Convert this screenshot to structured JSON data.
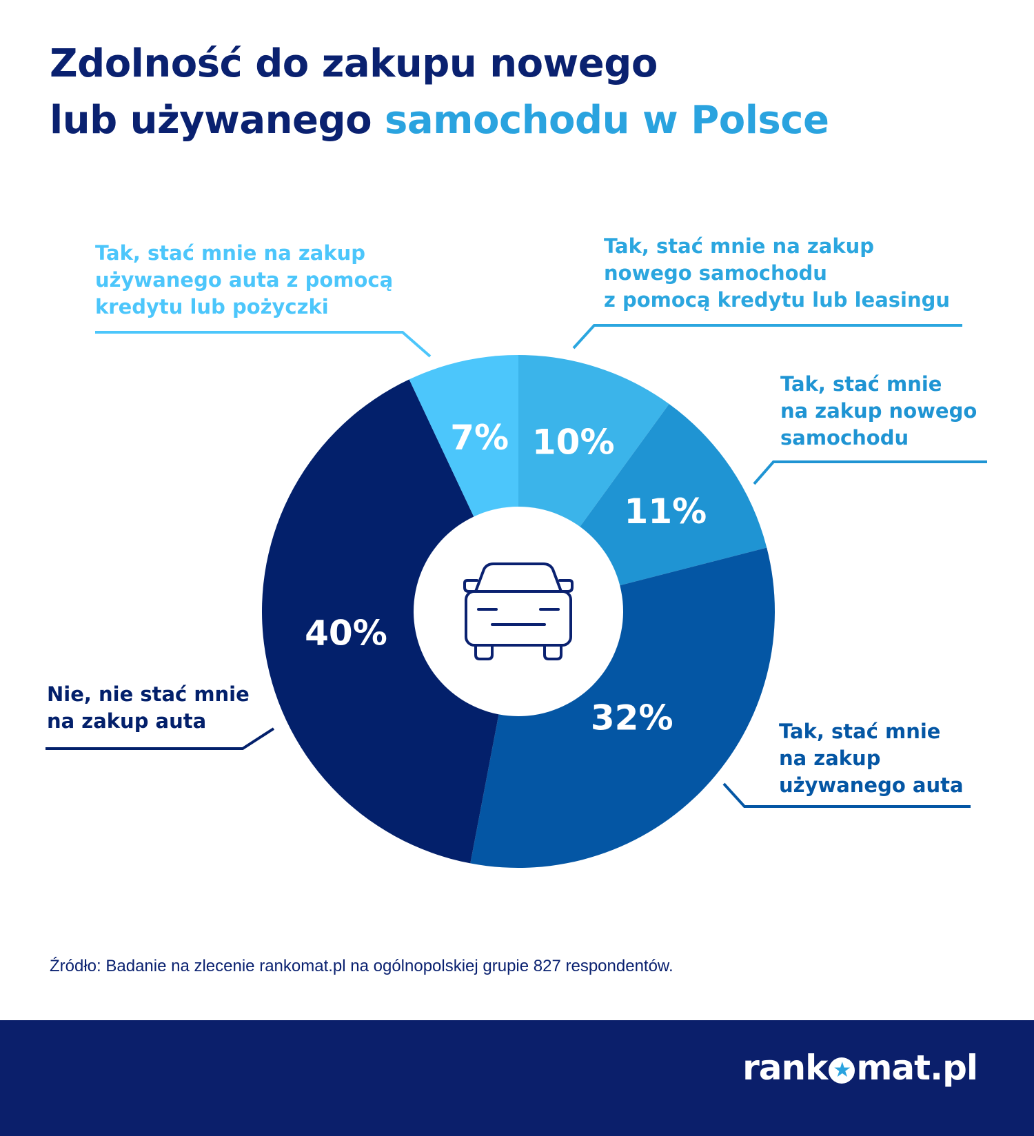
{
  "title": {
    "line1": "Zdolność do zakupu nowego",
    "line2_dark": "lub używanego ",
    "line2_accent": "samochodu w Polsce"
  },
  "chart_data": {
    "type": "pie",
    "categories": [
      "Tak, stać mnie na zakup nowego samochodu z pomocą kredytu lub leasingu",
      "Tak, stać mnie na zakup nowego samochodu",
      "Tak, stać mnie na zakup używanego auta",
      "Nie, nie stać mnie na zakup auta",
      "Tak, stać mnie na zakup używanego auta z pomocą kredytu lub pożyczki"
    ],
    "values": [
      10,
      11,
      32,
      40,
      7
    ],
    "value_labels": [
      "10%",
      "11%",
      "32%",
      "40%",
      "7%"
    ],
    "colors": [
      "#3bb4ea",
      "#1f94d3",
      "#0456a4",
      "#03206b",
      "#4cc6fb"
    ],
    "label_colors": [
      "#2ba6df",
      "#1f94d3",
      "#0456a4",
      "#03206b",
      "#4cc6fb"
    ],
    "center_icon": "car-icon"
  },
  "labels": {
    "new_credit": "Tak, stać mnie na zakup\nnowego samochodu\nz pomocą kredytu lub leasingu",
    "new": "Tak, stać mnie\nna zakup nowego\nsamochodu",
    "used": "Tak, stać mnie\nna zakup\nużywanego auta",
    "no": "Nie, nie stać mnie\nna zakup auta",
    "used_credit": "Tak, stać mnie na zakup\nużywanego auta z pomocą\nkredytu lub pożyczki"
  },
  "source": "Źródło: Badanie na zlecenie rankomat.pl na ogólnopolskiej grupie 827 respondentów.",
  "logo": {
    "before": "rank",
    "after": "mat.pl",
    "star_icon": "star-icon"
  }
}
